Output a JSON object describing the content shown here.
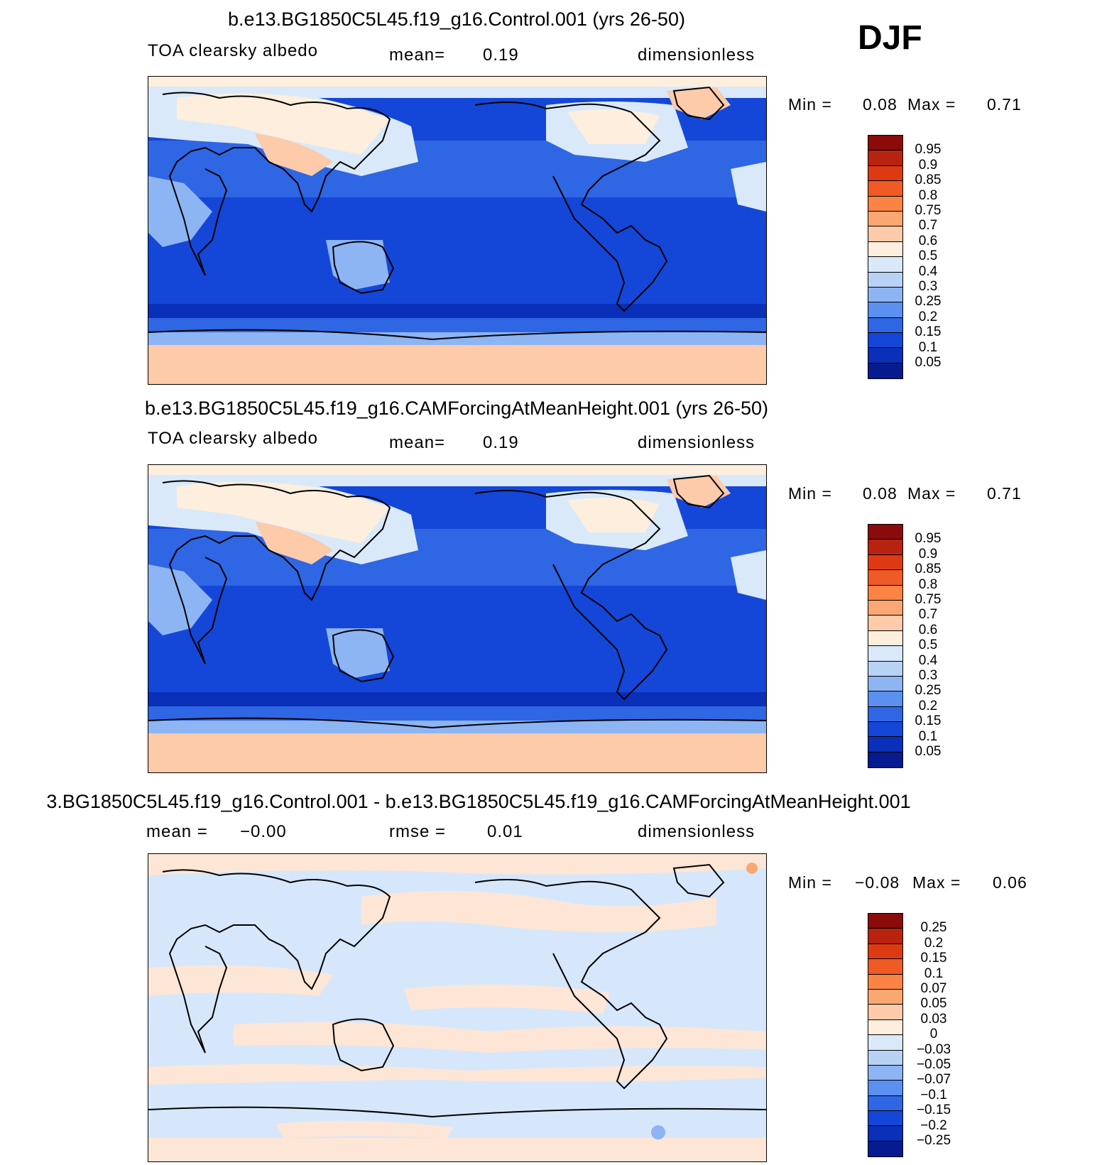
{
  "season": "DJF",
  "panels": [
    {
      "title": "b.e13.BG1850C5L45.f19_g16.Control.001 (yrs 26-50)",
      "variable": "TOA clearsky albedo",
      "stat1_label": "mean=",
      "stat1_value": "0.19",
      "stat2_label": "",
      "stat2_value": "",
      "units": "dimensionless",
      "min_label": "Min =",
      "min_value": "0.08",
      "max_label": "Max =",
      "max_value": "0.71",
      "colorbar_labels": [
        "0.95",
        "0.9",
        "0.85",
        "0.8",
        "0.75",
        "0.7",
        "0.6",
        "0.5",
        "0.4",
        "0.3",
        "0.25",
        "0.2",
        "0.15",
        "0.1",
        "0.05"
      ],
      "colorbar_colors": [
        "#8b0b0b",
        "#b8230f",
        "#de3a12",
        "#f05a24",
        "#fb8343",
        "#fba772",
        "#fdcaaa",
        "#fdeedd",
        "#d9e9f9",
        "#b8d2f6",
        "#8db4f3",
        "#5b8ff0",
        "#2f66e3",
        "#1447d8",
        "#0a2fb8",
        "#061b8f"
      ]
    },
    {
      "title": "b.e13.BG1850C5L45.f19_g16.CAMForcingAtMeanHeight.001 (yrs 26-50)",
      "variable": "TOA clearsky albedo",
      "stat1_label": "mean=",
      "stat1_value": "0.19",
      "stat2_label": "",
      "stat2_value": "",
      "units": "dimensionless",
      "min_label": "Min =",
      "min_value": "0.08",
      "max_label": "Max =",
      "max_value": "0.71",
      "colorbar_labels": [
        "0.95",
        "0.9",
        "0.85",
        "0.8",
        "0.75",
        "0.7",
        "0.6",
        "0.5",
        "0.4",
        "0.3",
        "0.25",
        "0.2",
        "0.15",
        "0.1",
        "0.05"
      ],
      "colorbar_colors": [
        "#8b0b0b",
        "#b8230f",
        "#de3a12",
        "#f05a24",
        "#fb8343",
        "#fba772",
        "#fdcaaa",
        "#fdeedd",
        "#d9e9f9",
        "#b8d2f6",
        "#8db4f3",
        "#5b8ff0",
        "#2f66e3",
        "#1447d8",
        "#0a2fb8",
        "#061b8f"
      ]
    },
    {
      "title": "3.BG1850C5L45.f19_g16.Control.001 - b.e13.BG1850C5L45.f19_g16.CAMForcingAtMeanHeight.001",
      "variable": "",
      "stat1_label": "mean =",
      "stat1_value": "−0.00",
      "stat2_label": "rmse =",
      "stat2_value": "0.01",
      "units": "dimensionless",
      "min_label": "Min =",
      "min_value": "−0.08",
      "max_label": "Max =",
      "max_value": "0.06",
      "colorbar_labels": [
        "0.25",
        "0.2",
        "0.15",
        "0.1",
        "0.07",
        "0.05",
        "0.03",
        "0",
        "−0.03",
        "−0.05",
        "−0.07",
        "−0.1",
        "−0.15",
        "−0.2",
        "−0.25"
      ],
      "colorbar_colors": [
        "#8b0b0b",
        "#b8230f",
        "#de3a12",
        "#f05a24",
        "#fb8343",
        "#fba772",
        "#fdcaaa",
        "#fdeedd",
        "#d9e9f9",
        "#b8d2f6",
        "#8db4f3",
        "#5b8ff0",
        "#2f66e3",
        "#1447d8",
        "#0a2fb8",
        "#061b8f"
      ]
    }
  ],
  "map_colors": {
    "ice": "#fdcaaa",
    "snow_light": "#fdeedd",
    "pale_blue": "#d9e9f9",
    "mid_blue": "#8db4f3",
    "blue": "#2f66e3",
    "ocean": "#1447d8",
    "deep_ocean": "#0a2fb8",
    "diff_pos": "#fde6d6",
    "diff_neg": "#d6e7fb"
  }
}
